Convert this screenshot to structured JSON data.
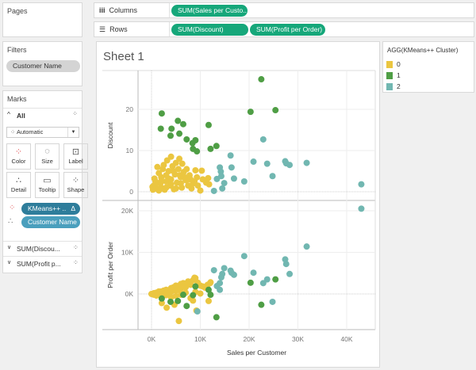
{
  "pages": {
    "title": "Pages"
  },
  "columns": {
    "label": "Columns",
    "icon": "columns-icon",
    "pills": [
      "SUM(Sales per Custo.."
    ]
  },
  "rows": {
    "label": "Rows",
    "icon": "rows-icon",
    "pills": [
      "SUM(Discount)",
      "SUM(Profit per Order)"
    ]
  },
  "filters": {
    "title": "Filters",
    "pills": [
      "Customer Name"
    ]
  },
  "marks": {
    "title": "Marks",
    "all_label": "All",
    "mark_type": "Automatic",
    "cards": [
      {
        "label": "Color",
        "icon": "color-icon"
      },
      {
        "label": "Size",
        "icon": "size-icon"
      },
      {
        "label": "Label",
        "icon": "label-icon"
      },
      {
        "label": "Detail",
        "icon": "detail-icon"
      },
      {
        "label": "Tooltip",
        "icon": "tooltip-icon"
      },
      {
        "label": "Shape",
        "icon": "shape-icon"
      }
    ],
    "fields": [
      {
        "label": "KMeans++ ..",
        "badge": "Δ",
        "color": "#2e7d9b"
      },
      {
        "label": "Customer Name",
        "color": "#4a9fbd"
      }
    ],
    "subcards": [
      "SUM(Discou...",
      "SUM(Profit p..."
    ]
  },
  "legend": {
    "title": "AGG(KMeans++ Cluster)",
    "items": [
      {
        "label": "0",
        "color": "#ebc640"
      },
      {
        "label": "1",
        "color": "#4f9e45"
      },
      {
        "label": "2",
        "color": "#71b7b1"
      }
    ]
  },
  "sheet": {
    "title": "Sheet 1"
  },
  "chart_data": [
    {
      "type": "scatter",
      "xlabel": "Sales per Customer",
      "ylabel": "Discount",
      "xticks": [
        "0K",
        "10K",
        "20K",
        "30K",
        "40K"
      ],
      "yticks": [
        "0",
        "10",
        "20"
      ],
      "xlim": [
        -2.7,
        45.5
      ],
      "ylim": [
        -2,
        29.5
      ],
      "x_unit": "K",
      "series": [
        {
          "name": "0",
          "color": "#ebc640",
          "points": [
            [
              0.3,
              0.5
            ],
            [
              0.5,
              1.5
            ],
            [
              0.8,
              2.5
            ],
            [
              0.6,
              3.2
            ],
            [
              1,
              0.8
            ],
            [
              1.2,
              6
            ],
            [
              1.5,
              4.5
            ],
            [
              1.8,
              2
            ],
            [
              2,
              3.5
            ],
            [
              2,
              1
            ],
            [
              2.3,
              5.5
            ],
            [
              2.5,
              6.5
            ],
            [
              2.7,
              0.5
            ],
            [
              3,
              2.5
            ],
            [
              3,
              4
            ],
            [
              3.2,
              7.6
            ],
            [
              3.5,
              5
            ],
            [
              3.8,
              1.5
            ],
            [
              4,
              8.5
            ],
            [
              4,
              3
            ],
            [
              4.3,
              6.2
            ],
            [
              4.6,
              0.6
            ],
            [
              4.8,
              4.2
            ],
            [
              5,
              7
            ],
            [
              5.2,
              2.2
            ],
            [
              5.5,
              5.5
            ],
            [
              5.7,
              8
            ],
            [
              6,
              3.5
            ],
            [
              6.2,
              1
            ],
            [
              6.3,
              6.8
            ],
            [
              6.6,
              4.8
            ],
            [
              7,
              2.8
            ],
            [
              7.2,
              5.5
            ],
            [
              7.5,
              1.5
            ],
            [
              7.8,
              4
            ],
            [
              8,
              3
            ],
            [
              8.2,
              0.8
            ],
            [
              8.5,
              2
            ],
            [
              9,
              5.2
            ],
            [
              9.3,
              3.5
            ],
            [
              9.5,
              1.5
            ],
            [
              10.3,
              5.1
            ],
            [
              10,
              0.3
            ],
            [
              10.5,
              3
            ],
            [
              11.2,
              2.2
            ],
            [
              11.6,
              3.3
            ],
            [
              11.8,
              1.8
            ],
            [
              1,
              2
            ],
            [
              2,
              2.5
            ],
            [
              3,
              1
            ],
            [
              4,
              1.8
            ],
            [
              5,
              0.8
            ],
            [
              6,
              2
            ],
            [
              0.2,
              1.2
            ],
            [
              1.5,
              0.3
            ],
            [
              3.5,
              3.2
            ],
            [
              4.5,
              5
            ],
            [
              5.8,
              4
            ],
            [
              6.8,
              3.5
            ],
            [
              7.5,
              3
            ],
            [
              8.8,
              2.5
            ]
          ]
        },
        {
          "name": "1",
          "color": "#4f9e45",
          "points": [
            [
              2.1,
              19.0
            ],
            [
              1.9,
              15.3
            ],
            [
              4.1,
              15.3
            ],
            [
              3.9,
              13.6
            ],
            [
              5.4,
              17.2
            ],
            [
              5.7,
              14.1
            ],
            [
              6.5,
              16.4
            ],
            [
              7.2,
              12.7
            ],
            [
              8.4,
              11.8
            ],
            [
              9.0,
              12.5
            ],
            [
              8.5,
              10.4
            ],
            [
              9.3,
              9.8
            ],
            [
              11.7,
              16.2
            ],
            [
              12.1,
              10.4
            ],
            [
              13.3,
              11.1
            ],
            [
              20.3,
              19.4
            ],
            [
              22.5,
              27.3
            ],
            [
              25.4,
              19.8
            ]
          ]
        },
        {
          "name": "2",
          "color": "#71b7b1",
          "points": [
            [
              22.9,
              12.7
            ],
            [
              20.9,
              7.3
            ],
            [
              23.7,
              6.8
            ],
            [
              24.8,
              3.8
            ],
            [
              27.4,
              7.4
            ],
            [
              27.6,
              6.9
            ],
            [
              28.3,
              6.5
            ],
            [
              31.8,
              7.0
            ],
            [
              43.0,
              1.8
            ],
            [
              16.2,
              8.8
            ],
            [
              16.4,
              5.9
            ],
            [
              16.9,
              3.2
            ],
            [
              19.0,
              2.5
            ],
            [
              14.0,
              5.9
            ],
            [
              14.2,
              4.9
            ],
            [
              14.3,
              3.8
            ],
            [
              13.4,
              3.1
            ],
            [
              14.9,
              2.1
            ],
            [
              14.5,
              0.8
            ],
            [
              12.8,
              0.2
            ]
          ]
        }
      ]
    },
    {
      "type": "scatter",
      "xlabel": "Sales per Customer",
      "ylabel": "Profit per Order",
      "xticks": [
        "0K",
        "10K",
        "20K",
        "30K",
        "40K"
      ],
      "yticks": [
        "0K",
        "10K",
        "20K"
      ],
      "xlim": [
        -2.7,
        45.5
      ],
      "ylim": [
        -8.5,
        22.5
      ],
      "x_unit": "K",
      "y_unit": "K",
      "series": [
        {
          "name": "0",
          "color": "#ebc640",
          "points": [
            [
              0,
              0
            ],
            [
              0.5,
              0.2
            ],
            [
              1,
              0.3
            ],
            [
              1.5,
              0.6
            ],
            [
              2,
              0.2
            ],
            [
              2.5,
              0.8
            ],
            [
              3,
              1
            ],
            [
              3.5,
              0.5
            ],
            [
              4,
              1.4
            ],
            [
              4.5,
              1.6
            ],
            [
              5,
              2
            ],
            [
              5.5,
              1
            ],
            [
              6,
              2.4
            ],
            [
              6.5,
              2.6
            ],
            [
              7,
              2.5
            ],
            [
              7.5,
              3
            ],
            [
              8,
              2.2
            ],
            [
              8.5,
              3.3
            ],
            [
              9,
              3.8
            ],
            [
              9.5,
              2.7
            ],
            [
              10,
              2
            ],
            [
              10.5,
              1.8
            ],
            [
              11,
              1.5
            ],
            [
              11.5,
              2.2
            ],
            [
              12,
              2.6
            ],
            [
              1,
              -0.4
            ],
            [
              2,
              -0.6
            ],
            [
              3,
              -0.3
            ],
            [
              4,
              -0.8
            ],
            [
              5,
              -0.5
            ],
            [
              6,
              -0.2
            ],
            [
              7,
              0.3
            ],
            [
              8,
              -1
            ],
            [
              8.5,
              -1.6
            ],
            [
              9,
              0.5
            ],
            [
              10,
              0.1
            ],
            [
              3,
              0.2
            ],
            [
              4,
              0.5
            ],
            [
              5,
              0.8
            ],
            [
              6,
              1.2
            ],
            [
              7,
              1.6
            ],
            [
              2,
              0.6
            ],
            [
              5.6,
              -6.5
            ],
            [
              3.1,
              -3.3
            ],
            [
              2.1,
              -2.2
            ],
            [
              4.7,
              -2.6
            ],
            [
              9.2,
              -4.0
            ],
            [
              11.7,
              -1.7
            ],
            [
              8.8,
              3.9
            ],
            [
              12.1,
              2.8
            ],
            [
              0.5,
              -0.2
            ],
            [
              1.5,
              -0.1
            ]
          ]
        },
        {
          "name": "1",
          "color": "#4f9e45",
          "points": [
            [
              20.3,
              2.7
            ],
            [
              25.4,
              3.5
            ],
            [
              22.5,
              -2.6
            ],
            [
              13.3,
              -5.6
            ],
            [
              9.0,
              1.8
            ],
            [
              11.7,
              1.0
            ],
            [
              12.1,
              -0.2
            ],
            [
              8.5,
              -0.3
            ],
            [
              7.2,
              -2.9
            ],
            [
              5.4,
              -1.7
            ],
            [
              3.9,
              -1.9
            ],
            [
              2.1,
              -1.1
            ],
            [
              6.5,
              -0.2
            ]
          ]
        },
        {
          "name": "2",
          "color": "#71b7b1",
          "points": [
            [
              43.0,
              20.5
            ],
            [
              31.8,
              11.4
            ],
            [
              19.0,
              9.1
            ],
            [
              27.4,
              8.3
            ],
            [
              27.6,
              7.2
            ],
            [
              28.3,
              4.8
            ],
            [
              20.9,
              5.1
            ],
            [
              23.7,
              3.5
            ],
            [
              22.9,
              2.6
            ],
            [
              24.8,
              -1.9
            ],
            [
              12.8,
              5.7
            ],
            [
              14.9,
              6.2
            ],
            [
              16.2,
              5.6
            ],
            [
              16.4,
              5.1
            ],
            [
              16.9,
              4.6
            ],
            [
              14.5,
              4.8
            ],
            [
              14.3,
              4.0
            ],
            [
              14.0,
              2.6
            ],
            [
              13.4,
              1.9
            ],
            [
              14.0,
              1.0
            ],
            [
              9.4,
              -4.2
            ]
          ]
        }
      ]
    }
  ]
}
